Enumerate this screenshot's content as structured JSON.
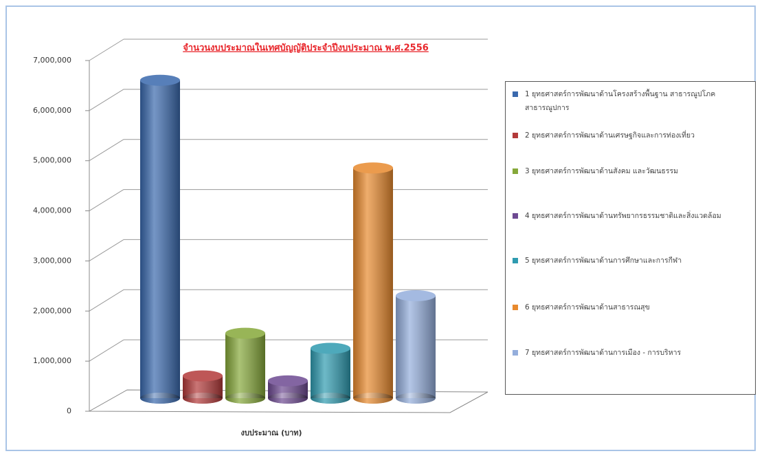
{
  "chart_data": {
    "type": "bar3d",
    "title": "จำนวนงบประมาณในเทศบัญญัติประจำปีงบประมาณ พ.ศ.2556",
    "x_label": "งบประมาณ (บาท)",
    "categories": [
      "งบประมาณ (บาท)"
    ],
    "ylim": [
      0,
      7000000
    ],
    "yticks": [
      0,
      {
        "value": 1000000,
        "label": "1,000,000"
      },
      {
        "value": 2000000,
        "label": "2,000,000"
      },
      {
        "value": 3000000,
        "label": "3,000,000"
      },
      {
        "value": 4000000,
        "label": "4,000,000"
      },
      {
        "value": 5000000,
        "label": "5,000,000"
      },
      {
        "value": 6000000,
        "label": "6,000,000"
      },
      {
        "value": 7000000,
        "label": "7,000,000"
      }
    ],
    "grid": true,
    "legend": "right",
    "series": [
      {
        "name": "1 ยุทธศาสตร์การพัฒนาด้านโครงสร้างพื้นฐาน สาธารณูปโภค สาธารณูปการ",
        "color": "#3a69ad",
        "values": [
          6400000
        ]
      },
      {
        "name": "2 ยุทธศาสตร์การพัฒนาด้านเศรษฐกิจและการท่องเที่ยว",
        "color": "#b33a3a",
        "values": [
          500000
        ]
      },
      {
        "name": "3 ยุทธศาสตร์การพัฒนาด้านสังคม และวัฒนธรรม",
        "color": "#86a83a",
        "values": [
          1350000
        ]
      },
      {
        "name": "4 ยุทธศาสตร์การพัฒนาด้านทรัพยากรธรรมชาติและสิ่งแวดล้อม",
        "color": "#6e4a92",
        "values": [
          400000
        ]
      },
      {
        "name": "5 ยุทธศาสตร์การพัฒนาด้านการศึกษาและการกีฬา",
        "color": "#2f9bb0",
        "values": [
          1050000
        ]
      },
      {
        "name": "6 ยุทธศาสตร์การพัฒนาด้านสาธารณสุข",
        "color": "#e88a2e",
        "values": [
          4650000
        ]
      },
      {
        "name": "7 ยุทธศาสตร์การพัฒนาด้านการเมือง - การบริหาร",
        "color": "#94aedc",
        "values": [
          2100000
        ]
      }
    ]
  }
}
